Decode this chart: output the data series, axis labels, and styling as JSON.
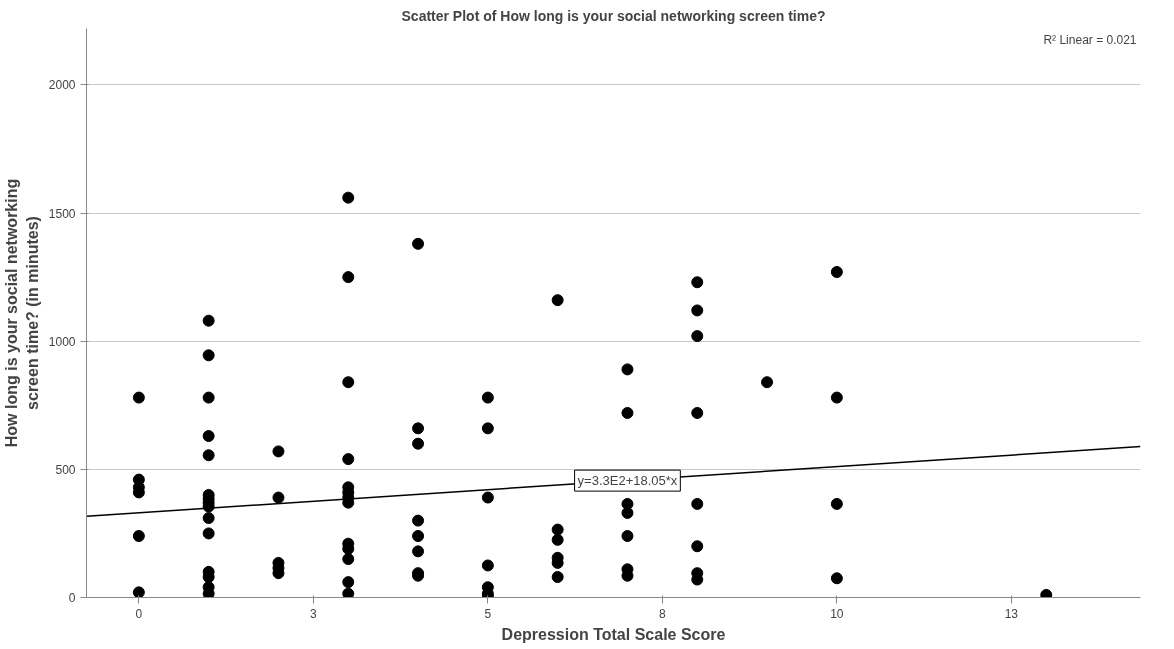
{
  "chart_data": {
    "type": "scatter",
    "title": "Scatter Plot of How long is your social networking screen time?",
    "xlabel": "Depression Total Scale Score",
    "ylabel": "How long is your social networking screen time? (in minutes)",
    "xlim": [
      -0.75,
      14.35
    ],
    "ylim": [
      0,
      2220
    ],
    "xticks": [
      0,
      {
        "value": 2.5,
        "label": "3"
      },
      5,
      {
        "value": 7.5,
        "label": "8"
      },
      10,
      {
        "value": 12.5,
        "label": "13"
      }
    ],
    "yticks": [
      0,
      500,
      1000,
      1500,
      2000
    ],
    "grid": "y",
    "annotations": [
      "R² Linear = 0.021",
      {
        "text": "y=3.3E2+18.05*x",
        "x": 7,
        "y": 456
      }
    ],
    "series": [
      {
        "marker": "circle",
        "color": "#000000",
        "x": [
          0,
          0,
          0,
          0,
          0,
          0,
          1,
          1,
          1,
          1,
          1,
          1,
          1,
          1,
          1,
          1,
          1,
          1,
          1,
          1,
          1,
          2,
          2,
          2,
          2,
          2,
          3,
          3,
          3,
          3,
          3,
          3,
          3,
          3,
          3,
          3,
          3,
          3,
          3,
          4,
          4,
          4,
          4,
          4,
          4,
          4,
          4,
          5,
          5,
          5,
          5,
          5,
          5,
          5,
          6,
          6,
          6,
          6,
          6,
          6,
          7,
          7,
          7,
          7,
          7,
          7,
          7,
          8,
          8,
          8,
          8,
          8,
          8,
          8,
          8,
          9,
          10,
          10,
          10,
          10,
          13
        ],
        "values": [
          780,
          460,
          430,
          410,
          240,
          20,
          1080,
          945,
          780,
          630,
          555,
          400,
          385,
          370,
          355,
          310,
          250,
          100,
          80,
          40,
          15,
          570,
          390,
          135,
          115,
          95,
          1560,
          1250,
          840,
          540,
          430,
          410,
          390,
          370,
          210,
          190,
          150,
          60,
          15,
          1380,
          660,
          600,
          300,
          240,
          180,
          95,
          85,
          780,
          660,
          390,
          125,
          40,
          15,
          5,
          1160,
          265,
          225,
          155,
          135,
          80,
          890,
          720,
          365,
          330,
          240,
          110,
          85,
          1230,
          1120,
          1020,
          720,
          365,
          200,
          95,
          70,
          840,
          1270,
          780,
          365,
          75,
          10
        ]
      },
      {
        "type": "line",
        "color": "#000000",
        "x": [
          -0.75,
          14.35
        ],
        "values": [
          317,
          589
        ]
      }
    ]
  }
}
